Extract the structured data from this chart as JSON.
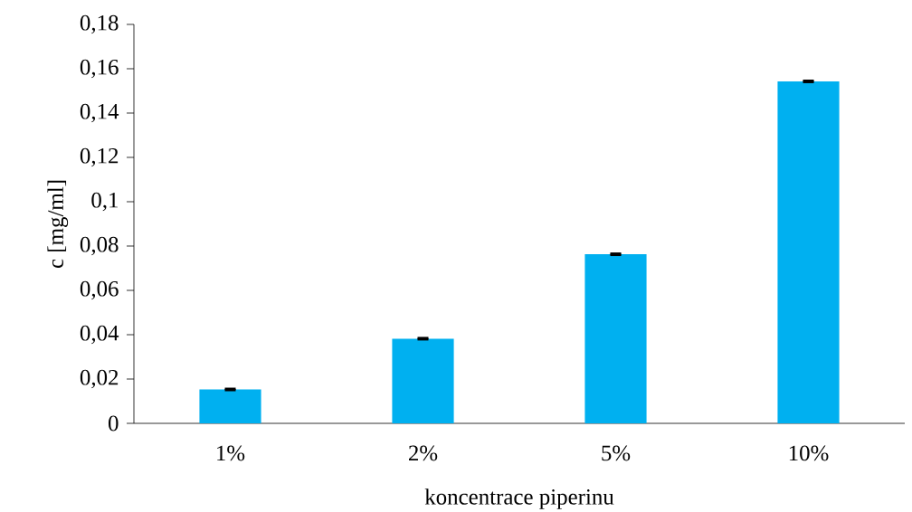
{
  "chart_data": {
    "type": "bar",
    "xlabel": "koncentrace piperinu",
    "ylabel": "c [mg/ml]",
    "categories": [
      "1%",
      "2%",
      "5%",
      "10%"
    ],
    "values": [
      0.0153,
      0.0382,
      0.0763,
      0.1543
    ],
    "errors": [
      0.0003,
      0.0003,
      0.0003,
      0.0003
    ],
    "color": "#00b0f0",
    "ylim": [
      0,
      0.18
    ],
    "yticks": [
      0,
      {
        "value": 0.02,
        "label": "0,02"
      },
      {
        "value": 0.04,
        "label": "0,04"
      },
      {
        "value": 0.06,
        "label": "0,06"
      },
      {
        "value": 0.08,
        "label": "0,08"
      },
      {
        "value": 0.1,
        "label": "0,1"
      },
      {
        "value": 0.12,
        "label": "0,12"
      },
      {
        "value": 0.14,
        "label": "0,14"
      },
      {
        "value": 0.16,
        "label": "0,16"
      },
      {
        "value": 0.18,
        "label": "0,18"
      }
    ],
    "grid": false
  }
}
